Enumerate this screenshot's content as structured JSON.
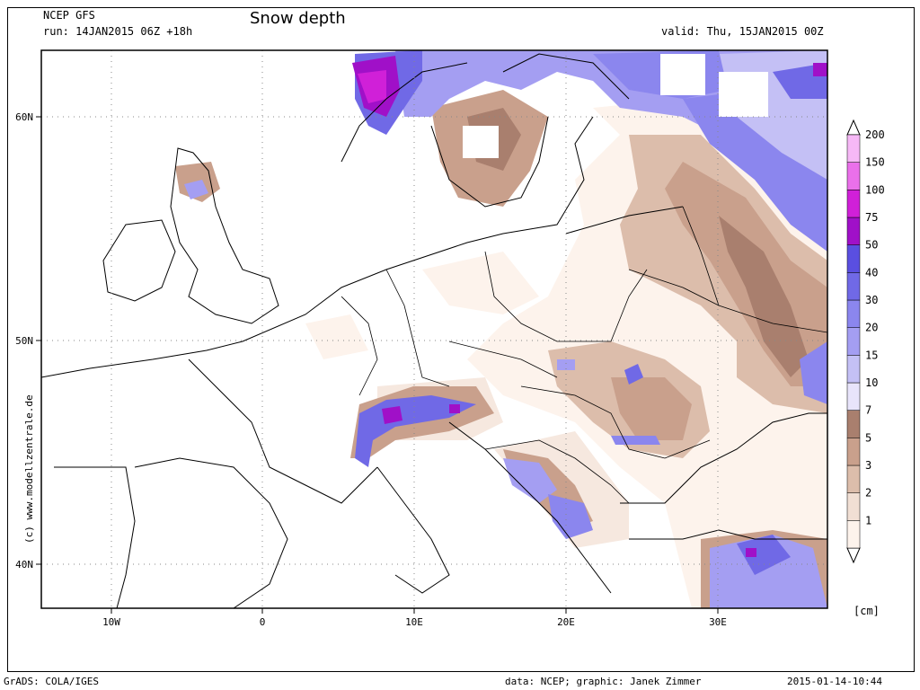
{
  "header": {
    "model": "NCEP GFS",
    "run": "run: 14JAN2015 06Z +18h",
    "title": "Snow depth",
    "valid": "valid: Thu, 15JAN2015 00Z"
  },
  "map": {
    "lon_ticks": [
      "10W",
      "0",
      "10E",
      "20E",
      "30E"
    ],
    "lat_ticks": [
      "60N",
      "50N",
      "40N"
    ],
    "watermark": "(c) www.modellzentrale.de"
  },
  "legend": {
    "unit": "[cm]",
    "levels": [
      "1",
      "2",
      "3",
      "5",
      "7",
      "10",
      "15",
      "20",
      "30",
      "40",
      "50",
      "75",
      "100",
      "150",
      "200"
    ],
    "colors": [
      "#fdf3ec",
      "#f1dfd4",
      "#dcbdab",
      "#c9a08c",
      "#a97f6e",
      "#e8e4fb",
      "#c4c0f5",
      "#a49ef2",
      "#8b86ee",
      "#7069e6",
      "#5a4fe0",
      "#a010c8",
      "#d020d8",
      "#ea70ea",
      "#f6b8f6"
    ]
  },
  "footer": {
    "left": "GrADS: COLA/IGES",
    "credit": "data: NCEP; graphic: Janek Zimmer",
    "timestamp": "2015-01-14-10:44"
  }
}
